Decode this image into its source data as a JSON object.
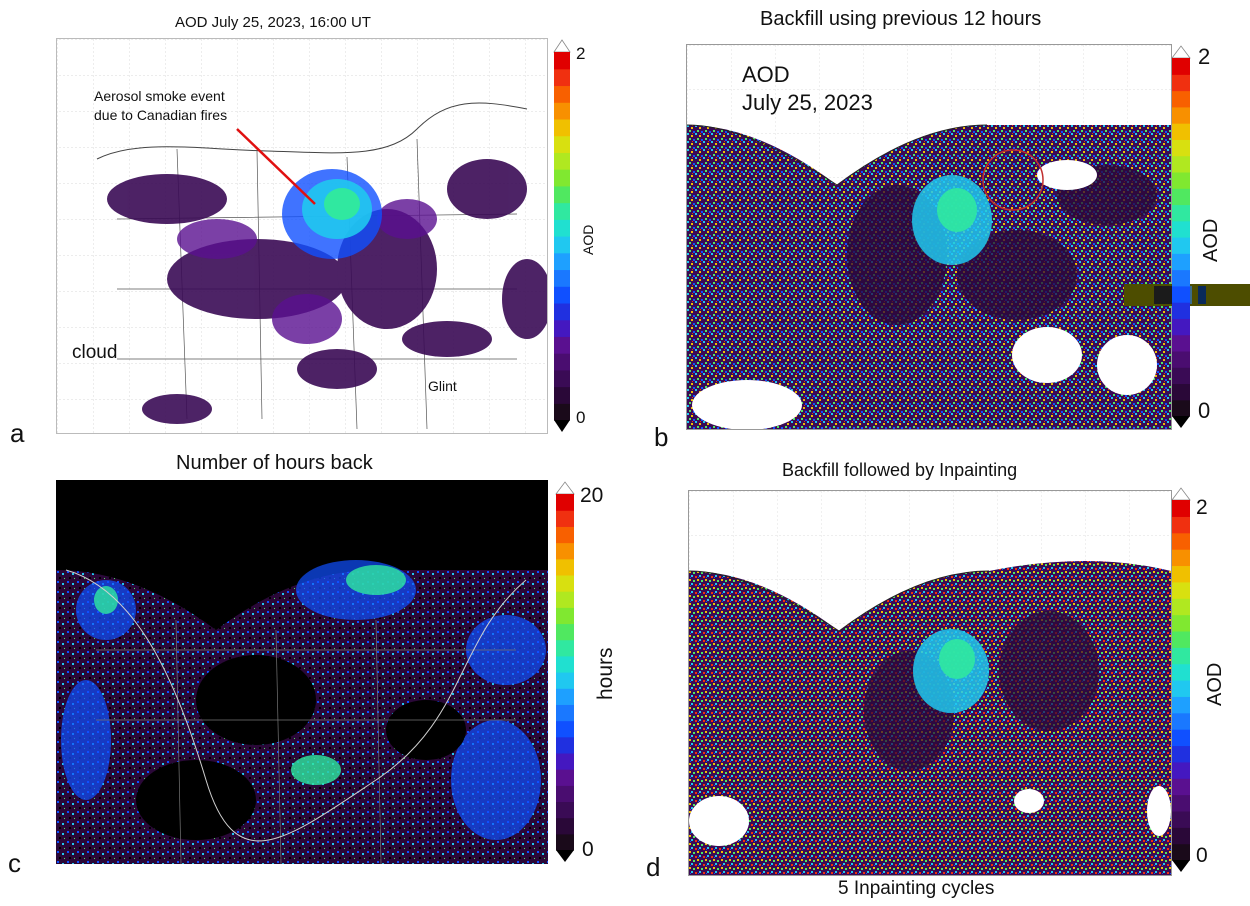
{
  "panels": {
    "a": {
      "letter": "a",
      "title": "AOD July 25, 2023, 16:00 UT",
      "annotation_line1": "Aerosol smoke event",
      "annotation_line2": "due to Canadian fires",
      "cloud_label": "cloud",
      "glint_label": "Glint",
      "colorbar": {
        "label": "AOD",
        "max": "2",
        "min": "0"
      }
    },
    "b": {
      "letter": "b",
      "title": "Backfill using previous 12 hours",
      "inset_line1": "AOD",
      "inset_line2": "July 25, 2023",
      "colorbar": {
        "label": "AOD",
        "max": "2",
        "min": "0"
      }
    },
    "c": {
      "letter": "c",
      "title": "Number of hours back",
      "colorbar": {
        "label": "hours",
        "max": "20",
        "min": "0"
      }
    },
    "d": {
      "letter": "d",
      "title": "Backfill followed by Inpainting",
      "subtitle": "5 Inpainting cycles",
      "colorbar": {
        "label": "AOD",
        "max": "2",
        "min": "0"
      }
    }
  },
  "colors": {
    "colorbar_steps": [
      "#1a0a1a",
      "#2a0838",
      "#3a0b55",
      "#4a0d70",
      "#5a1090",
      "#4418c0",
      "#2030e0",
      "#1050ff",
      "#1a78ff",
      "#1ea0ff",
      "#20c8f0",
      "#20e0d0",
      "#30e8a0",
      "#50e860",
      "#80e830",
      "#b0e820",
      "#d8e010",
      "#f0c000",
      "#f89000",
      "#f86000",
      "#f03010",
      "#e00000"
    ],
    "panel_c_background": "#000000"
  }
}
